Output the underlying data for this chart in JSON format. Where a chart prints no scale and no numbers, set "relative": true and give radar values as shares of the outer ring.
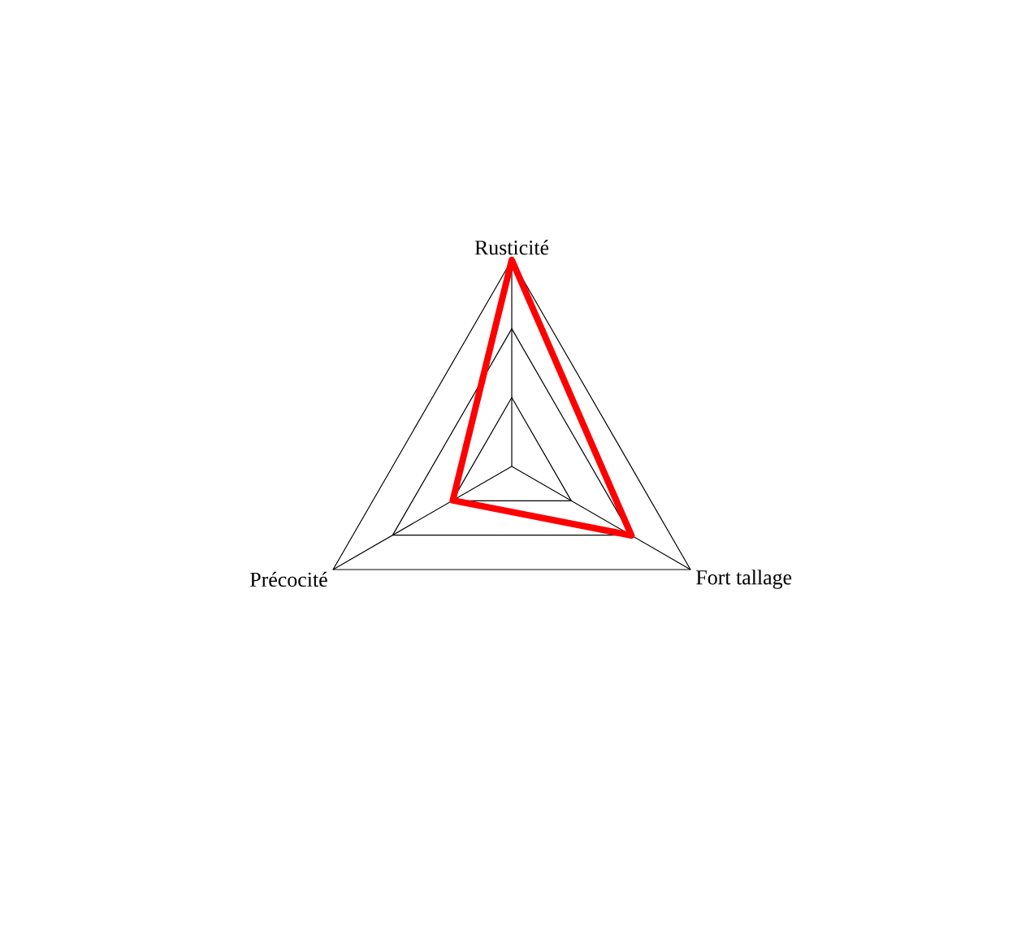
{
  "chart_data": {
    "type": "radar",
    "categories": [
      "Rusticité",
      "Fort tallage",
      "Précocité"
    ],
    "relative": true,
    "grid": true,
    "series": [
      {
        "color": "#ff0000",
        "values": [
          1,
          0.67,
          0.33
        ]
      }
    ]
  }
}
